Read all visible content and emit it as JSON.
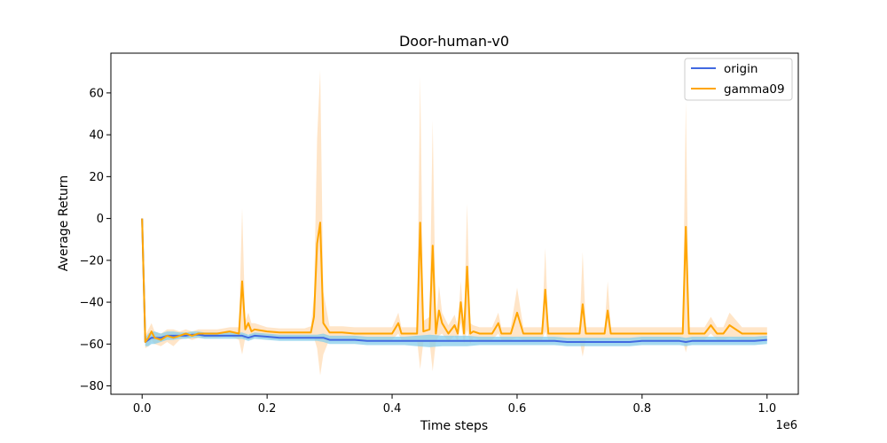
{
  "colors": {
    "origin": "#4169e1",
    "gamma09": "#ffa500",
    "origin_band": "#87ceeb",
    "gamma09_band": "#ffdab0"
  },
  "chart_data": {
    "type": "line",
    "title": "Door-human-v0",
    "xlabel": "Time steps",
    "ylabel": "Average Return",
    "x_offset_label": "1e6",
    "xlim": [
      -0.05,
      1.05
    ],
    "ylim": [
      -84,
      79
    ],
    "xticks": [
      0.0,
      0.2,
      0.4,
      0.6,
      0.8,
      1.0
    ],
    "xtick_labels": [
      "0.0",
      "0.2",
      "0.4",
      "0.6",
      "0.8",
      "1.0"
    ],
    "yticks": [
      -80,
      -60,
      -40,
      -20,
      0,
      20,
      40,
      60
    ],
    "ytick_labels": [
      "−80",
      "−60",
      "−40",
      "−20",
      "0",
      "20",
      "40",
      "60"
    ],
    "grid": false,
    "legend_position": "top-right",
    "series": [
      {
        "name": "origin",
        "color": "#4169e1",
        "band_color": "#87ceeb",
        "x": [
          0.0,
          0.005,
          0.01,
          0.015,
          0.02,
          0.03,
          0.04,
          0.05,
          0.06,
          0.07,
          0.08,
          0.09,
          0.1,
          0.12,
          0.14,
          0.16,
          0.17,
          0.18,
          0.2,
          0.22,
          0.24,
          0.26,
          0.28,
          0.29,
          0.3,
          0.32,
          0.34,
          0.36,
          0.38,
          0.4,
          0.42,
          0.44,
          0.46,
          0.48,
          0.5,
          0.52,
          0.54,
          0.56,
          0.58,
          0.6,
          0.62,
          0.64,
          0.66,
          0.68,
          0.7,
          0.72,
          0.74,
          0.76,
          0.78,
          0.8,
          0.82,
          0.84,
          0.86,
          0.87,
          0.88,
          0.9,
          0.92,
          0.94,
          0.96,
          0.98,
          1.0
        ],
        "y": [
          0,
          -59,
          -58,
          -57,
          -57,
          -57,
          -56,
          -56,
          -56,
          -56,
          -55.5,
          -55.5,
          -56,
          -56,
          -56,
          -56,
          -57,
          -56,
          -56.5,
          -57,
          -57,
          -57,
          -57,
          -57,
          -58,
          -58,
          -58,
          -58.5,
          -58.5,
          -58.5,
          -58.5,
          -58.5,
          -58.5,
          -58.5,
          -58.5,
          -58.5,
          -58.5,
          -58.5,
          -58.5,
          -58.5,
          -58.5,
          -58.5,
          -58.5,
          -59,
          -59,
          -59,
          -59,
          -59,
          -59,
          -58.5,
          -58.5,
          -58.5,
          -58.5,
          -59,
          -58.5,
          -58.5,
          -58.5,
          -58.5,
          -58.5,
          -58.5,
          -58
        ],
        "spread": [
          0,
          2,
          3,
          3,
          3,
          2,
          2,
          2,
          1.5,
          1.5,
          1.5,
          1.5,
          1.5,
          1.5,
          1.5,
          1.5,
          1.5,
          1.5,
          1.5,
          1.5,
          1.5,
          1.5,
          1.5,
          2,
          2,
          2,
          2,
          2,
          2,
          2,
          2,
          2.5,
          3,
          2.5,
          2.5,
          2.5,
          2,
          2,
          2,
          2,
          2,
          2,
          2,
          2,
          2,
          2,
          2,
          2,
          2,
          2,
          2,
          2,
          2,
          2,
          2,
          2,
          2,
          2,
          2,
          2,
          2
        ]
      },
      {
        "name": "gamma09",
        "color": "#ffa500",
        "band_color": "#ffdab0",
        "x": [
          0.0,
          0.005,
          0.01,
          0.015,
          0.02,
          0.03,
          0.04,
          0.05,
          0.06,
          0.07,
          0.08,
          0.09,
          0.1,
          0.12,
          0.14,
          0.155,
          0.16,
          0.165,
          0.17,
          0.175,
          0.18,
          0.2,
          0.22,
          0.24,
          0.26,
          0.27,
          0.275,
          0.28,
          0.285,
          0.29,
          0.3,
          0.32,
          0.34,
          0.36,
          0.38,
          0.4,
          0.41,
          0.415,
          0.42,
          0.44,
          0.445,
          0.45,
          0.46,
          0.465,
          0.47,
          0.475,
          0.48,
          0.49,
          0.5,
          0.505,
          0.51,
          0.515,
          0.52,
          0.525,
          0.53,
          0.54,
          0.56,
          0.57,
          0.575,
          0.58,
          0.59,
          0.6,
          0.61,
          0.62,
          0.64,
          0.645,
          0.65,
          0.67,
          0.69,
          0.7,
          0.705,
          0.71,
          0.72,
          0.74,
          0.745,
          0.75,
          0.77,
          0.79,
          0.81,
          0.83,
          0.85,
          0.86,
          0.865,
          0.87,
          0.875,
          0.88,
          0.89,
          0.9,
          0.91,
          0.92,
          0.93,
          0.94,
          0.96,
          0.98,
          1.0
        ],
        "y": [
          0,
          -59,
          -57,
          -54,
          -57,
          -58,
          -56,
          -57,
          -56,
          -55,
          -56,
          -55,
          -55,
          -55,
          -54,
          -55,
          -30,
          -53,
          -50,
          -54,
          -53,
          -54,
          -54.5,
          -54.5,
          -54.5,
          -54.5,
          -47,
          -12,
          -2,
          -50,
          -54.5,
          -54.5,
          -55,
          -55,
          -55,
          -55,
          -50,
          -55,
          -55,
          -55,
          -2,
          -54,
          -53,
          -13,
          -55,
          -44,
          -50,
          -55,
          -51,
          -55,
          -40,
          -55,
          -23,
          -55,
          -54,
          -55,
          -55,
          -50,
          -55,
          -55,
          -55,
          -45,
          -55,
          -55,
          -55,
          -34,
          -55,
          -55,
          -55,
          -55,
          -41,
          -55,
          -55,
          -55,
          -44,
          -55,
          -55,
          -55,
          -55,
          -55,
          -55,
          -55,
          -55,
          -4,
          -55,
          -55,
          -55,
          -55,
          -51,
          -55,
          -55,
          -51,
          -55,
          -55,
          -55
        ],
        "spread": [
          0,
          3,
          4,
          4,
          3,
          3,
          3,
          4,
          2,
          2,
          2,
          2,
          2,
          2,
          2,
          3,
          35,
          4,
          5,
          4,
          3,
          2,
          2,
          2,
          2,
          3,
          10,
          50,
          73,
          15,
          3,
          3,
          3,
          3,
          3,
          3,
          5,
          3,
          3,
          3,
          70,
          5,
          6,
          60,
          4,
          12,
          5,
          4,
          5,
          4,
          10,
          5,
          30,
          5,
          3,
          3,
          3,
          5,
          3,
          3,
          3,
          12,
          3,
          3,
          3,
          20,
          3,
          3,
          3,
          3,
          25,
          3,
          3,
          3,
          14,
          3,
          3,
          3,
          3,
          3,
          3,
          3,
          3,
          60,
          3,
          3,
          3,
          3,
          4,
          3,
          3,
          6,
          3,
          3,
          3
        ]
      }
    ]
  }
}
